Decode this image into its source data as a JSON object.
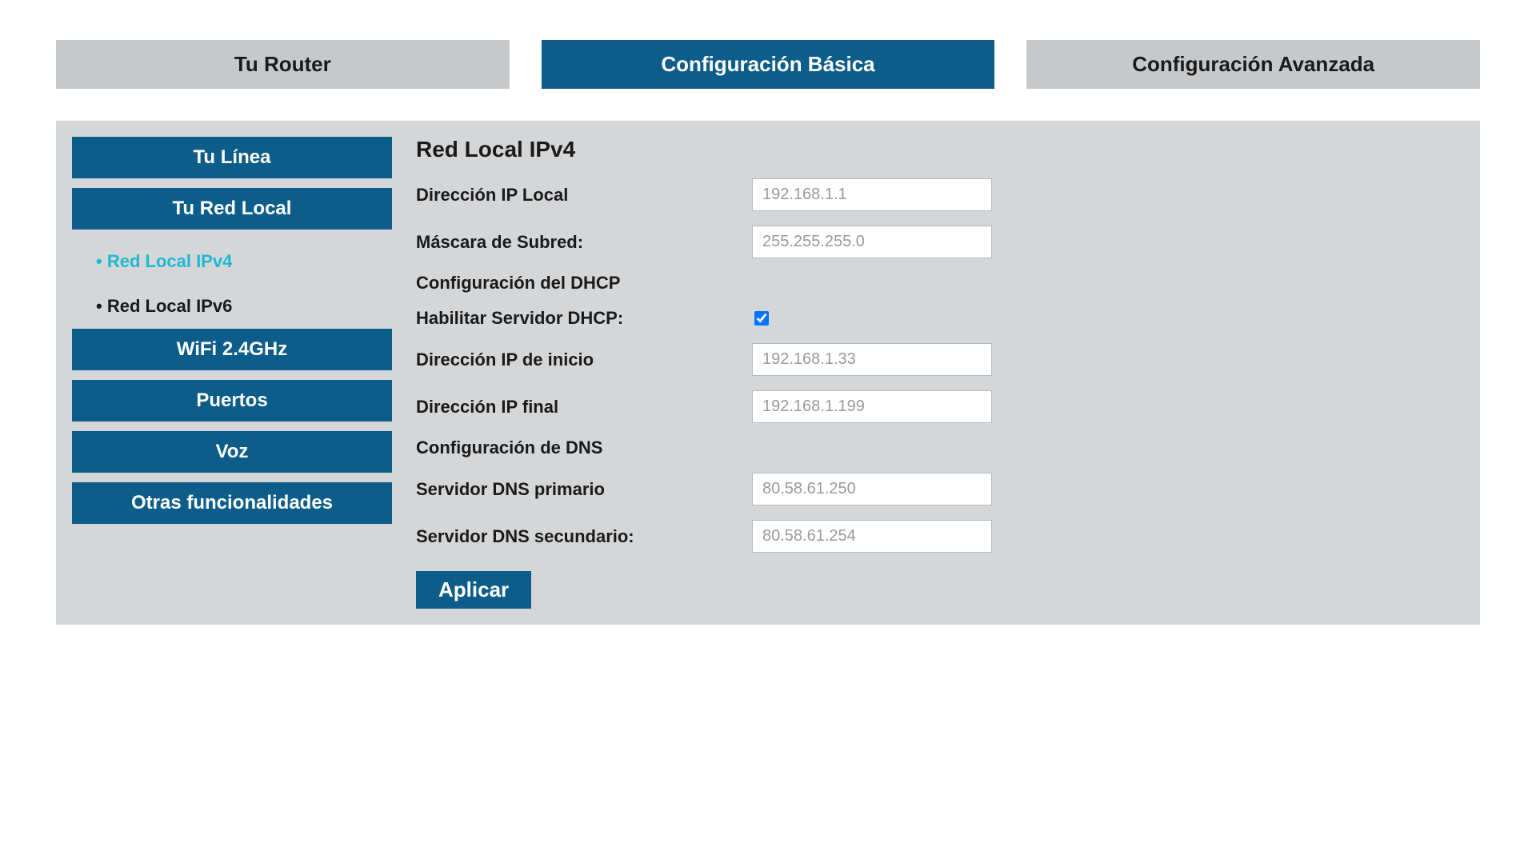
{
  "topTabs": [
    {
      "label": "Tu Router",
      "active": false
    },
    {
      "label": "Configuración Básica",
      "active": true
    },
    {
      "label": "Configuración Avanzada",
      "active": false
    }
  ],
  "sidebar": {
    "items": [
      {
        "label": "Tu Línea",
        "type": "item"
      },
      {
        "label": "Tu Red Local",
        "type": "item"
      },
      {
        "label": "Red Local IPv4",
        "type": "subitem",
        "active": true
      },
      {
        "label": "Red Local IPv6",
        "type": "subitem",
        "active": false
      },
      {
        "label": "WiFi 2.4GHz",
        "type": "item"
      },
      {
        "label": "Puertos",
        "type": "item"
      },
      {
        "label": "Voz",
        "type": "item"
      },
      {
        "label": "Otras funcionalidades",
        "type": "item"
      }
    ]
  },
  "main": {
    "title": "Red Local IPv4",
    "sections": {
      "ipLocal": {
        "label": "Dirección IP Local",
        "value": "192.168.1.1"
      },
      "subnetMask": {
        "label": "Máscara de Subred:",
        "value": "255.255.255.0"
      },
      "dhcpHeader": "Configuración del DHCP",
      "dhcpEnable": {
        "label": "Habilitar Servidor DHCP:",
        "checked": true
      },
      "ipStart": {
        "label": "Dirección IP de inicio",
        "value": "192.168.1.33"
      },
      "ipEnd": {
        "label": "Dirección IP final",
        "value": "192.168.1.199"
      },
      "dnsHeader": "Configuración de DNS",
      "dnsPrimary": {
        "label": "Servidor DNS primario",
        "value": "80.58.61.250"
      },
      "dnsSecondary": {
        "label": "Servidor DNS secundario:",
        "value": "80.58.61.254"
      }
    },
    "applyButton": "Aplicar"
  },
  "colors": {
    "activeTab": "#0d5d8a",
    "inactiveTab": "#c7c8ca",
    "activeSubitem": "#1db8d4",
    "background": "#d5d6d8",
    "inputText": "#9a9a9a"
  }
}
